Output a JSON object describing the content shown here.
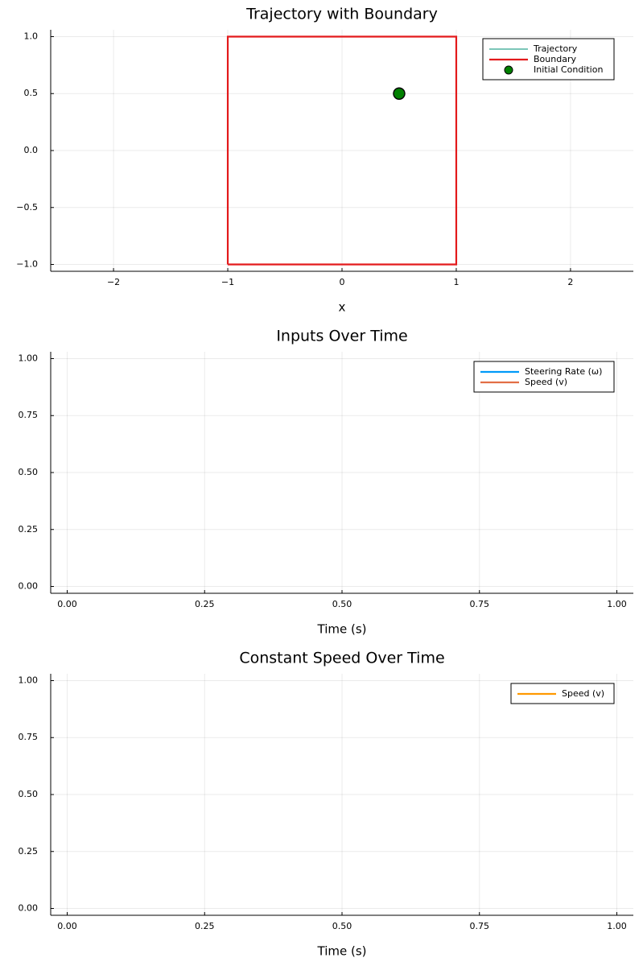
{
  "chart_data": [
    {
      "type": "line",
      "title": "Trajectory with Boundary",
      "xlabel": "x",
      "ylabel": "",
      "xlim": [
        -2.55,
        2.55
      ],
      "ylim": [
        -1.06,
        1.06
      ],
      "xticks": [
        -2,
        -1,
        0,
        1,
        2
      ],
      "xtick_labels": [
        "−2",
        "−1",
        "0",
        "1",
        "2"
      ],
      "yticks": [
        -1.0,
        -0.5,
        0.0,
        0.5,
        1.0
      ],
      "ytick_labels": [
        "−1.0",
        "−0.5",
        "0.0",
        "0.5",
        "1.0"
      ],
      "grid": true,
      "legend_position": "top-right",
      "series": [
        {
          "name": "Trajectory",
          "kind": "line",
          "color": "#2ca58d",
          "x": [],
          "y": []
        },
        {
          "name": "Boundary",
          "kind": "line",
          "color": "#e31a1c",
          "x": [
            -1,
            1,
            1,
            -1,
            -1
          ],
          "y": [
            -1,
            -1,
            1,
            1,
            -1
          ]
        },
        {
          "name": "Initial Condition",
          "kind": "scatter",
          "color": "#008000",
          "x": [
            0.5
          ],
          "y": [
            0.5
          ]
        }
      ]
    },
    {
      "type": "line",
      "title": "Inputs Over Time",
      "xlabel": "Time (s)",
      "ylabel": "",
      "xlim": [
        -0.03,
        1.03
      ],
      "ylim": [
        -0.03,
        1.03
      ],
      "xticks": [
        0,
        0.25,
        0.5,
        0.75,
        1.0
      ],
      "xtick_labels": [
        "0.00",
        "0.25",
        "0.50",
        "0.75",
        "1.00"
      ],
      "yticks": [
        0,
        0.25,
        0.5,
        0.75,
        1.0
      ],
      "ytick_labels": [
        "0.00",
        "0.25",
        "0.50",
        "0.75",
        "1.00"
      ],
      "grid": true,
      "legend_position": "top-right",
      "series": [
        {
          "name": "Steering Rate (ω)",
          "kind": "line",
          "color": "#009af9",
          "x": [],
          "y": []
        },
        {
          "name": "Speed (v)",
          "kind": "line",
          "color": "#e26f46",
          "x": [],
          "y": []
        }
      ]
    },
    {
      "type": "line",
      "title": "Constant Speed Over Time",
      "xlabel": "Time (s)",
      "ylabel": "",
      "xlim": [
        -0.03,
        1.03
      ],
      "ylim": [
        -0.03,
        1.03
      ],
      "xticks": [
        0,
        0.25,
        0.5,
        0.75,
        1.0
      ],
      "xtick_labels": [
        "0.00",
        "0.25",
        "0.50",
        "0.75",
        "1.00"
      ],
      "yticks": [
        0,
        0.25,
        0.5,
        0.75,
        1.0
      ],
      "ytick_labels": [
        "0.00",
        "0.25",
        "0.50",
        "0.75",
        "1.00"
      ],
      "grid": true,
      "legend_position": "top-right",
      "series": [
        {
          "name": "Speed (v)",
          "kind": "line",
          "color": "#ff9900",
          "x": [],
          "y": []
        }
      ]
    }
  ]
}
